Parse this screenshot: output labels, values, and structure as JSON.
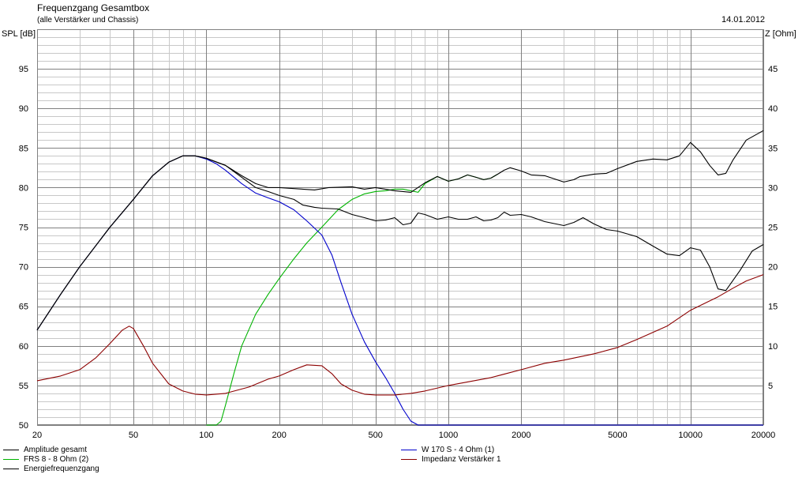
{
  "title": "Frequenzgang Gesamtbox",
  "subtitle": "(alle Verstärker und Chassis)",
  "date": "14.01.2012",
  "chart_data": {
    "type": "line",
    "xscale": "log",
    "xlim": [
      20,
      20000
    ],
    "ylim": [
      50,
      100
    ],
    "y2lim": [
      0,
      50
    ],
    "ylabel": "SPL [dB]",
    "y2label": "Z [Ohm]",
    "grid": true,
    "legend_position": "bottom",
    "x_ticks": [
      20,
      50,
      100,
      200,
      500,
      1000,
      2000,
      5000,
      10000,
      20000
    ],
    "x_tick_labels": [
      "20",
      "50",
      "100",
      "200",
      "500",
      "1000",
      "2000",
      "5000",
      "10000",
      "20000"
    ],
    "y_ticks": [
      50,
      55,
      60,
      65,
      70,
      75,
      80,
      85,
      90,
      95
    ],
    "y_tick_labels": [
      "50",
      "55",
      "60",
      "65",
      "70",
      "75",
      "80",
      "85",
      "90",
      "95"
    ],
    "y2_ticks": [
      5,
      10,
      15,
      20,
      25,
      30,
      35,
      40,
      45
    ],
    "y2_tick_labels": [
      "5",
      "10",
      "15",
      "20",
      "25",
      "30",
      "35",
      "40",
      "45"
    ],
    "series": [
      {
        "name": "Amplitude gesamt",
        "color": "#000000",
        "axis": "left",
        "x": [
          20,
          25,
          30,
          40,
          50,
          60,
          70,
          80,
          90,
          100,
          120,
          140,
          160,
          180,
          200,
          250,
          280,
          320,
          400,
          450,
          500,
          600,
          700,
          800,
          900,
          1000,
          1100,
          1200,
          1300,
          1400,
          1500,
          1600,
          1700,
          1800,
          2000,
          2200,
          2500,
          3000,
          3300,
          3500,
          4000,
          4500,
          5000,
          6000,
          7000,
          8000,
          9000,
          10000,
          11000,
          12000,
          13000,
          14000,
          15000,
          17000,
          20000
        ],
        "y": [
          62.0,
          66.5,
          70.0,
          75.0,
          78.5,
          81.5,
          83.2,
          84.0,
          84.0,
          83.7,
          82.8,
          81.5,
          80.5,
          80.0,
          80.0,
          79.8,
          79.7,
          80.0,
          80.1,
          79.8,
          80.0,
          79.6,
          79.4,
          80.6,
          81.4,
          80.8,
          81.1,
          81.6,
          81.3,
          81.0,
          81.2,
          81.7,
          82.2,
          82.5,
          82.1,
          81.6,
          81.5,
          80.7,
          81.0,
          81.4,
          81.7,
          81.8,
          82.4,
          83.3,
          83.6,
          83.5,
          84.0,
          85.7,
          84.5,
          82.8,
          81.6,
          81.8,
          83.5,
          86.0,
          87.2
        ]
      },
      {
        "name": "FRS 8 - 8 Ohm (2)",
        "color": "#00b400",
        "axis": "left",
        "x": [
          100,
          110,
          115,
          120,
          130,
          140,
          160,
          180,
          200,
          230,
          260,
          300,
          350,
          400,
          450,
          500,
          550,
          600,
          650,
          700,
          750,
          800,
          900,
          1000,
          1100,
          1200,
          1300,
          1400,
          1500,
          1600
        ],
        "y": [
          50.0,
          50.0,
          50.5,
          52.5,
          56.5,
          60.0,
          64.0,
          66.5,
          68.5,
          71.0,
          73.0,
          75.0,
          77.2,
          78.5,
          79.2,
          79.5,
          79.6,
          79.8,
          79.8,
          79.6,
          79.4,
          80.5,
          81.4,
          80.8,
          81.1,
          81.6,
          81.3,
          81.0,
          81.2,
          81.7
        ]
      },
      {
        "name": "W 170 S - 4 Ohm (1)",
        "color": "#0000cc",
        "axis": "left",
        "x": [
          20,
          25,
          30,
          40,
          50,
          60,
          70,
          80,
          90,
          100,
          110,
          120,
          140,
          160,
          180,
          200,
          230,
          260,
          300,
          330,
          360,
          400,
          450,
          500,
          550,
          600,
          650,
          700,
          750,
          1000,
          2000,
          5000,
          10000,
          20000
        ],
        "y": [
          62.0,
          66.5,
          70.0,
          75.0,
          78.5,
          81.5,
          83.2,
          84.0,
          84.0,
          83.6,
          83.0,
          82.2,
          80.5,
          79.3,
          78.7,
          78.2,
          77.2,
          75.8,
          74.0,
          71.5,
          68.0,
          64.0,
          60.5,
          58.0,
          56.0,
          54.0,
          52.0,
          50.5,
          50.0,
          50.0,
          50.0,
          50.0,
          50.0,
          50.0
        ]
      },
      {
        "name": "Impedanz Verstärker 1",
        "color": "#8c0000",
        "axis": "right",
        "x": [
          20,
          25,
          30,
          35,
          40,
          45,
          48,
          50,
          55,
          60,
          70,
          80,
          90,
          100,
          120,
          150,
          180,
          200,
          230,
          260,
          300,
          330,
          360,
          400,
          450,
          500,
          600,
          700,
          800,
          1000,
          1500,
          2000,
          2500,
          3000,
          4000,
          5000,
          6000,
          8000,
          10000,
          13000,
          15000,
          17000,
          20000
        ],
        "y": [
          5.6,
          6.2,
          7.0,
          8.5,
          10.3,
          12.0,
          12.5,
          12.2,
          10.0,
          7.8,
          5.2,
          4.3,
          3.9,
          3.8,
          4.0,
          4.8,
          5.8,
          6.2,
          7.0,
          7.6,
          7.5,
          6.5,
          5.2,
          4.4,
          3.9,
          3.8,
          3.8,
          4.0,
          4.3,
          5.0,
          6.0,
          7.0,
          7.8,
          8.2,
          9.0,
          9.8,
          10.8,
          12.5,
          14.5,
          16.2,
          17.3,
          18.2,
          19.0
        ]
      },
      {
        "name": "Energiefrequenzgang",
        "color": "#000000",
        "axis": "left",
        "x": [
          20,
          25,
          30,
          40,
          50,
          60,
          70,
          80,
          90,
          100,
          120,
          140,
          160,
          180,
          200,
          230,
          250,
          280,
          300,
          350,
          400,
          450,
          500,
          550,
          600,
          650,
          700,
          750,
          800,
          900,
          1000,
          1100,
          1200,
          1300,
          1400,
          1500,
          1600,
          1700,
          1800,
          2000,
          2200,
          2500,
          3000,
          3300,
          3600,
          4000,
          4500,
          5000,
          6000,
          7000,
          8000,
          9000,
          10000,
          11000,
          12000,
          13000,
          14000,
          16000,
          18000,
          20000
        ],
        "y": [
          62.0,
          66.5,
          70.0,
          75.0,
          78.5,
          81.5,
          83.2,
          84.0,
          84.0,
          83.7,
          82.8,
          81.3,
          80.0,
          79.5,
          79.0,
          78.5,
          77.8,
          77.5,
          77.4,
          77.3,
          76.6,
          76.2,
          75.8,
          75.9,
          76.2,
          75.3,
          75.5,
          76.8,
          76.6,
          76.0,
          76.3,
          76.0,
          76.0,
          76.3,
          75.8,
          75.9,
          76.2,
          76.9,
          76.5,
          76.6,
          76.3,
          75.7,
          75.2,
          75.6,
          76.2,
          75.4,
          74.7,
          74.5,
          73.8,
          72.6,
          71.6,
          71.4,
          72.4,
          72.1,
          70.0,
          67.2,
          67.0,
          69.5,
          72.0,
          72.8
        ]
      }
    ]
  }
}
